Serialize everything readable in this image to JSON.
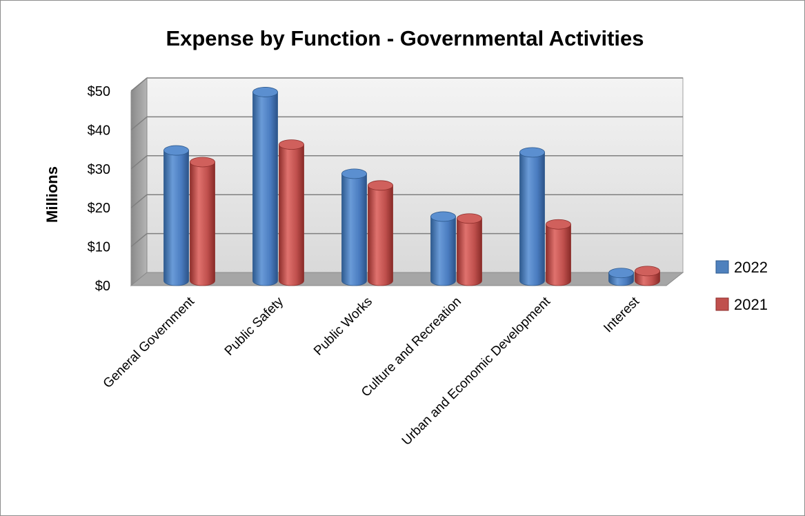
{
  "chart_data": {
    "type": "bar",
    "title": "Expense by Function - Governmental Activities",
    "ylabel": "Millions",
    "xlabel": "",
    "categories": [
      "General Government",
      "Public Safety",
      "Public Works",
      "Culture and Recreation",
      "Urban and Economic Development",
      "Interest"
    ],
    "series": [
      {
        "name": "2022",
        "values": [
          33.5,
          48.5,
          27.5,
          16.5,
          33,
          2
        ],
        "color": "#4f81bd"
      },
      {
        "name": "2021",
        "values": [
          30.5,
          35,
          24.5,
          16,
          14.5,
          2.5
        ],
        "color": "#c0504d"
      }
    ],
    "ylim": [
      0,
      50
    ],
    "yticks": [
      0,
      10,
      20,
      30,
      40,
      50
    ],
    "ytick_labels": [
      "$0",
      "$10",
      "$20",
      "$30",
      "$40",
      "$50"
    ],
    "grid": true,
    "legend_position": "right",
    "style": "3d-cylinder"
  }
}
